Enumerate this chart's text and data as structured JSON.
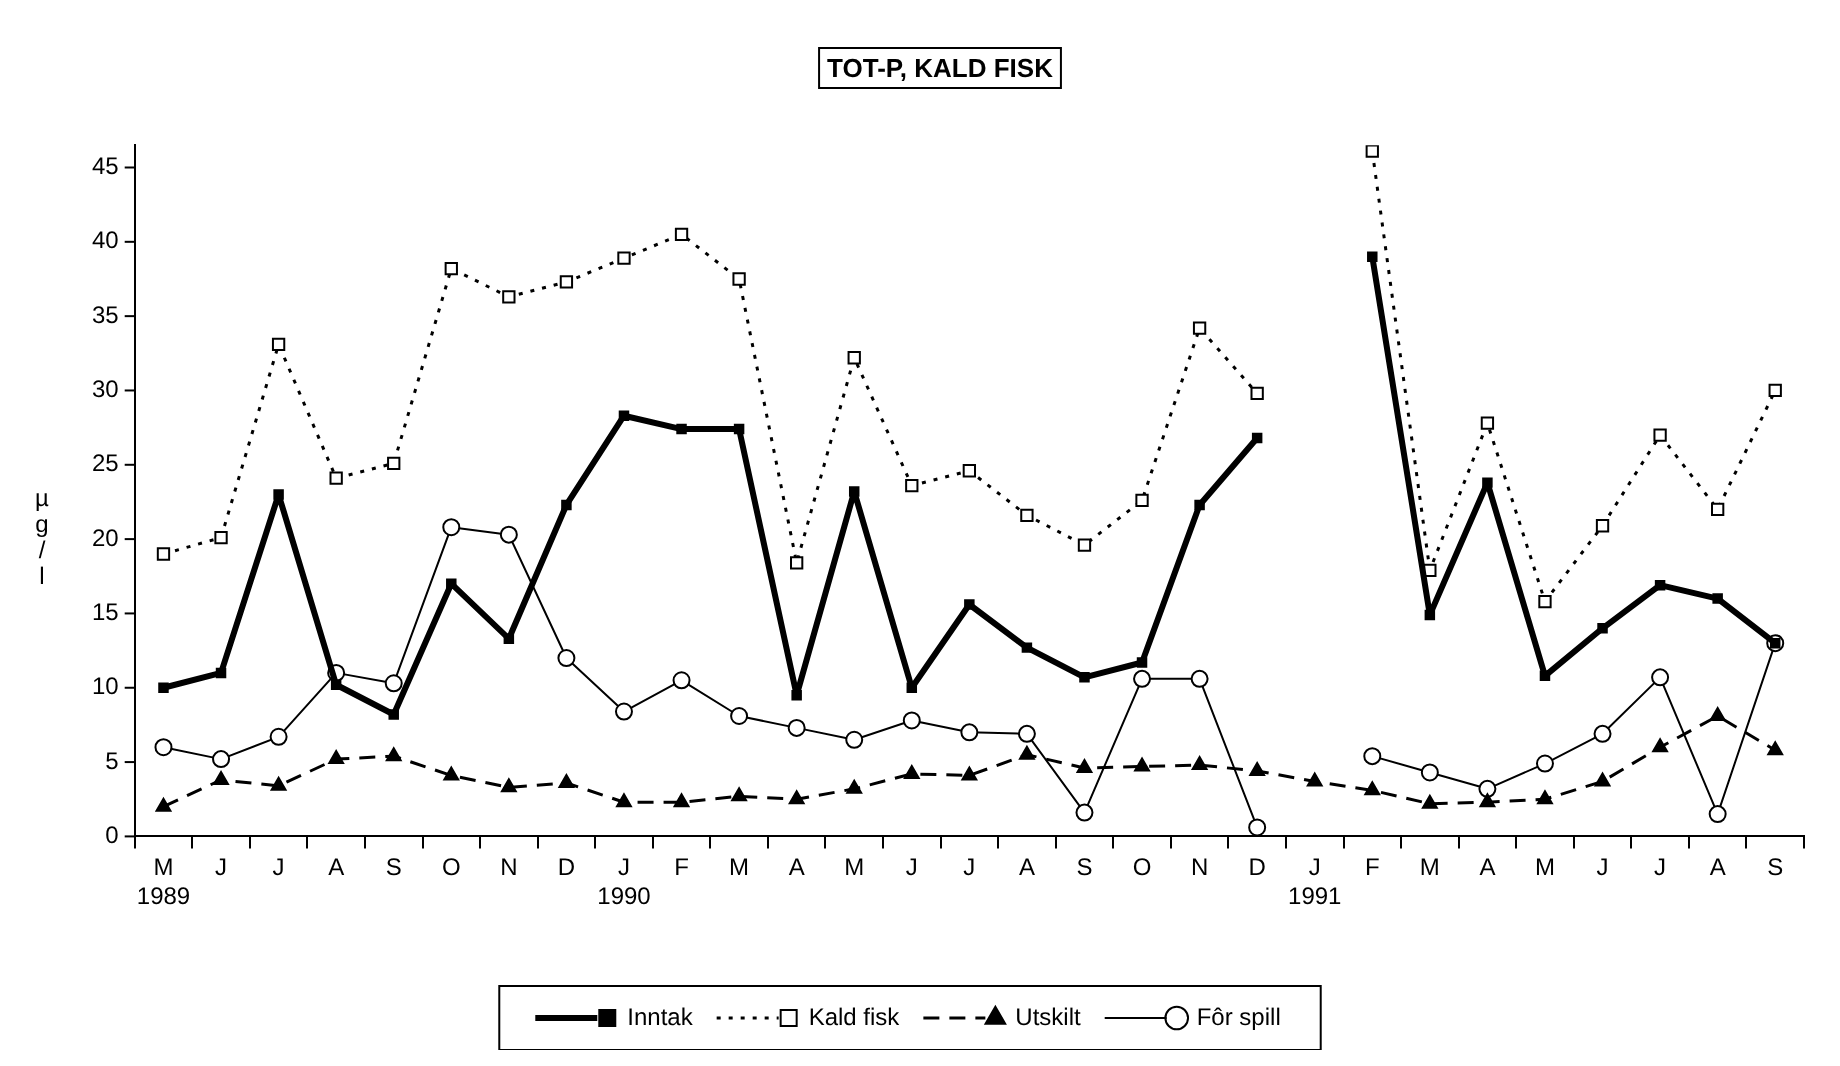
{
  "chart_data": {
    "type": "line",
    "title": "TOT-P, KALD FISK",
    "ylabel": "µg/l",
    "categories": [
      "M\n1989",
      "J",
      "J",
      "A",
      "S",
      "O",
      "N",
      "D",
      "J\n1990",
      "F",
      "M",
      "A",
      "M",
      "J",
      "J",
      "A",
      "S",
      "O",
      "N",
      "D",
      "J\n1991",
      "F",
      "M",
      "A",
      "M",
      "J",
      "J",
      "A",
      "S"
    ],
    "series": [
      {
        "name": "Inntak",
        "color": "#000000",
        "marker": "square",
        "line_style": "solid",
        "values": [
          10,
          11,
          23,
          10.2,
          8.2,
          17,
          13.3,
          22.3,
          28.3,
          27.4,
          27.4,
          9.5,
          23.2,
          10,
          15.6,
          12.7,
          10.7,
          11.7,
          22.3,
          26.8,
          null,
          39,
          14.9,
          23.8,
          10.8,
          14,
          16.9,
          16,
          13
        ]
      },
      {
        "name": "Kald fisk",
        "color": "#000000",
        "marker": "square",
        "line_style": "dotted",
        "values": [
          19,
          20.1,
          33.1,
          24.1,
          25.1,
          38.2,
          36.3,
          37.3,
          38.9,
          40.5,
          37.5,
          18.4,
          32.2,
          23.6,
          24.6,
          21.6,
          19.6,
          22.6,
          34.2,
          29.8,
          null,
          46.1,
          17.9,
          27.8,
          15.8,
          20.9,
          27,
          22,
          30
        ]
      },
      {
        "name": "Utskilt",
        "color": "#000000",
        "marker": "triangle",
        "line_style": "dashed",
        "values": [
          2,
          3.8,
          3.4,
          5.2,
          5.4,
          4.1,
          3.3,
          3.6,
          2.3,
          2.3,
          2.7,
          2.5,
          3.2,
          4.2,
          4.1,
          5.5,
          4.6,
          4.7,
          4.8,
          4.4,
          3.7,
          3.1,
          2.2,
          2.3,
          2.5,
          3.7,
          6,
          8.1,
          5.8
        ]
      },
      {
        "name": "Fôr spill",
        "color": "#000000",
        "marker": "circle",
        "line_style": "solid",
        "values": [
          6,
          5.2,
          6.7,
          11,
          10.3,
          20.8,
          20.3,
          12,
          8.4,
          10.5,
          8.1,
          7.3,
          6.5,
          7.8,
          7,
          6.9,
          1.6,
          10.6,
          10.6,
          0.6,
          null,
          5.4,
          4.3,
          3.2,
          4.9,
          6.9,
          10.7,
          1.5,
          13
        ]
      }
    ],
    "ylim": [
      0,
      46.5
    ],
    "yticks": [
      0,
      5,
      10,
      15,
      20,
      25,
      30,
      35,
      40,
      45
    ],
    "grid": false,
    "legend": "bottom"
  }
}
